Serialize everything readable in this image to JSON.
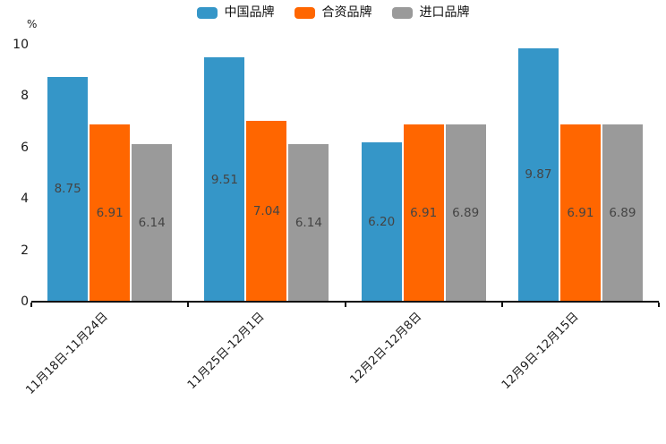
{
  "chart_data": {
    "type": "bar",
    "title": "",
    "unit_label": "%",
    "xlabel": "",
    "ylabel": "%",
    "ylim": [
      0,
      10
    ],
    "yticks": [
      0,
      2,
      4,
      6,
      8,
      10
    ],
    "grid": false,
    "legend_position": "top-center",
    "value_labels": "inside-center, two decimals",
    "categories": [
      "11月18日-11月24日",
      "11月25日-12月1日",
      "12月2日-12月8日",
      "12月9日-12月15日"
    ],
    "series": [
      {
        "name": "中国品牌",
        "color": "#3596c8",
        "values": [
          8.75,
          9.51,
          6.2,
          9.87
        ]
      },
      {
        "name": "合资品牌",
        "color": "#ff6600",
        "values": [
          6.91,
          7.04,
          6.91,
          6.91
        ]
      },
      {
        "name": "进口品牌",
        "color": "#9a9a9a",
        "values": [
          6.14,
          6.14,
          6.89,
          6.89
        ]
      }
    ],
    "colors": {
      "axis": "#111111",
      "tick_text": "#1a1a1a",
      "bar_label": "#444444",
      "background": "#ffffff"
    }
  }
}
